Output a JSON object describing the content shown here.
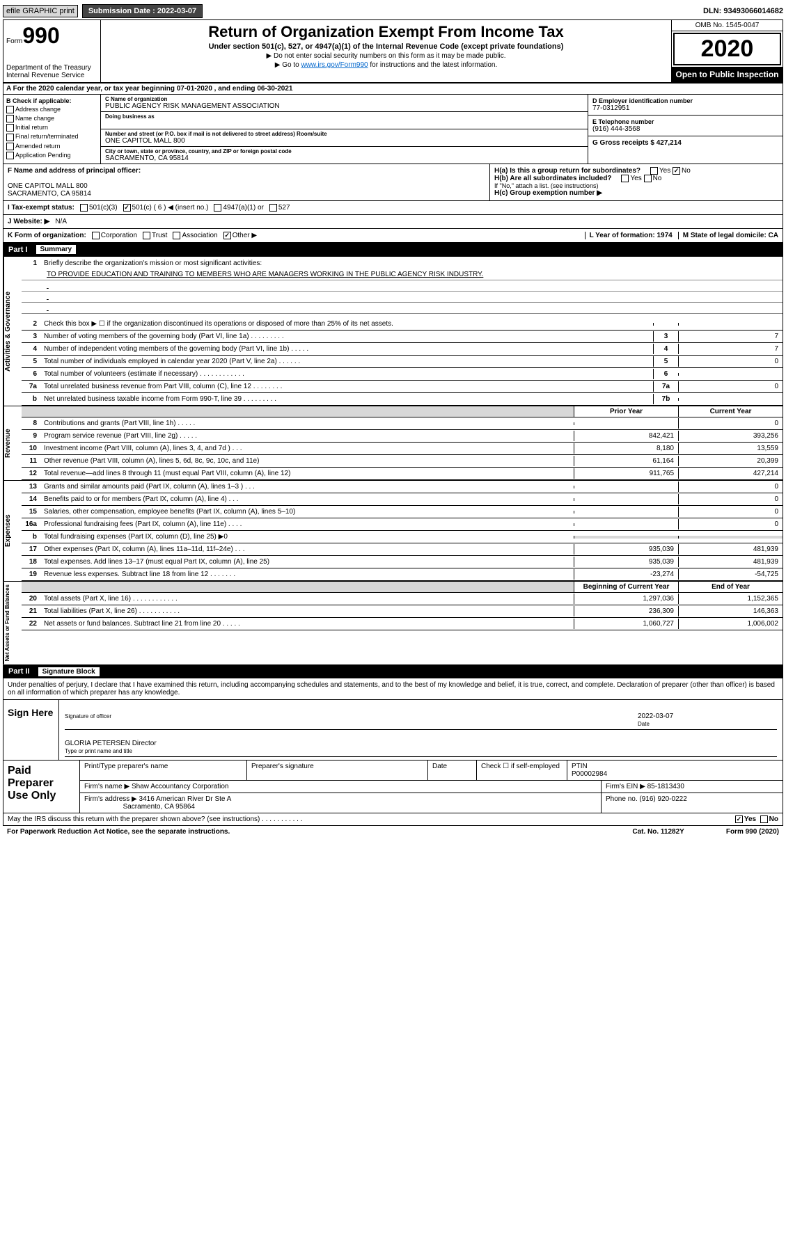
{
  "top": {
    "efile": "efile GRAPHIC print",
    "subm_label": "Submission Date : 2022-03-07",
    "dln": "DLN: 93493066014682"
  },
  "header": {
    "form": "Form",
    "formnum": "990",
    "title": "Return of Organization Exempt From Income Tax",
    "subtitle": "Under section 501(c), 527, or 4947(a)(1) of the Internal Revenue Code (except private foundations)",
    "note1": "▶ Do not enter social security numbers on this form as it may be made public.",
    "note2a": "▶ Go to ",
    "note2_link": "www.irs.gov/Form990",
    "note2b": " for instructions and the latest information.",
    "dept": "Department of the Treasury\nInternal Revenue Service",
    "omb": "OMB No. 1545-0047",
    "year": "2020",
    "open": "Open to Public Inspection"
  },
  "rowA": "A For the 2020 calendar year, or tax year beginning 07-01-2020     , and ending 06-30-2021",
  "colB": {
    "title": "B Check if applicable:",
    "opts": [
      "Address change",
      "Name change",
      "Initial return",
      "Final return/terminated",
      "Amended return",
      "Application Pending"
    ]
  },
  "colC": {
    "name_lbl": "C Name of organization",
    "name": "PUBLIC AGENCY RISK MANAGEMENT ASSOCIATION",
    "dba_lbl": "Doing business as",
    "addr_lbl": "Number and street (or P.O. box if mail is not delivered to street address)     Room/suite",
    "addr": "ONE CAPITOL MALL 800",
    "city_lbl": "City or town, state or province, country, and ZIP or foreign postal code",
    "city": "SACRAMENTO, CA  95814"
  },
  "colD": {
    "ein_lbl": "D Employer identification number",
    "ein": "77-0312951",
    "tel_lbl": "E Telephone number",
    "tel": "(916) 444-3568",
    "gross_lbl": "G Gross receipts $ 427,214"
  },
  "rowF": {
    "lbl": "F Name and address of principal officer:",
    "addr1": "ONE CAPITOL MALL 800",
    "addr2": "SACRAMENTO, CA  95814"
  },
  "rowH": {
    "ha": "H(a)  Is this a group return for subordinates?",
    "ha_yes": "Yes",
    "ha_no": "No",
    "hb": "H(b)  Are all subordinates included?",
    "hb_note": "If \"No,\" attach a list. (see instructions)",
    "hc": "H(c)  Group exemption number ▶"
  },
  "rowI": {
    "lbl": "I   Tax-exempt status:",
    "opts": [
      "501(c)(3)",
      "501(c) ( 6 ) ◀ (insert no.)",
      "4947(a)(1) or",
      "527"
    ]
  },
  "rowJ": {
    "lbl": "J   Website: ▶",
    "val": "N/A"
  },
  "rowK": {
    "lbl": "K Form of organization:",
    "opts": [
      "Corporation",
      "Trust",
      "Association",
      "Other ▶"
    ],
    "l": "L Year of formation: 1974",
    "m": "M State of legal domicile: CA"
  },
  "partI": {
    "num": "Part I",
    "title": "Summary"
  },
  "vlabels": [
    "Activities & Governance",
    "Revenue",
    "Expenses",
    "Net Assets or Fund Balances"
  ],
  "line1": {
    "num": "1",
    "desc": "Briefly describe the organization's mission or most significant activities:",
    "mission": "TO PROVIDE EDUCATION AND TRAINING TO MEMBERS WHO ARE MANAGERS WORKING IN THE PUBLIC AGENCY RISK INDUSTRY."
  },
  "gov_lines": [
    {
      "n": "2",
      "d": "Check this box ▶ ☐  if the organization discontinued its operations or disposed of more than 25% of its net assets.",
      "box": "",
      "v": ""
    },
    {
      "n": "3",
      "d": "Number of voting members of the governing body (Part VI, line 1a)  .    .    .    .    .    .    .    .    .",
      "box": "3",
      "v": "7"
    },
    {
      "n": "4",
      "d": "Number of independent voting members of the governing body (Part VI, line 1b)  .    .    .    .    .",
      "box": "4",
      "v": "7"
    },
    {
      "n": "5",
      "d": "Total number of individuals employed in calendar year 2020 (Part V, line 2a)  .    .    .    .    .    .",
      "box": "5",
      "v": "0"
    },
    {
      "n": "6",
      "d": "Total number of volunteers (estimate if necessary)  .    .    .    .    .    .    .    .    .    .    .    .",
      "box": "6",
      "v": ""
    },
    {
      "n": "7a",
      "d": "Total unrelated business revenue from Part VIII, column (C), line 12  .    .    .    .    .    .    .    .",
      "box": "7a",
      "v": "0"
    },
    {
      "n": "b",
      "d": "Net unrelated business taxable income from Form 990-T, line 39  .    .    .    .    .    .    .    .    .",
      "box": "7b",
      "v": ""
    }
  ],
  "col_heads": {
    "prior": "Prior Year",
    "current": "Current Year",
    "begin": "Beginning of Current Year",
    "end": "End of Year"
  },
  "rev_lines": [
    {
      "n": "8",
      "d": "Contributions and grants (Part VIII, line 1h)  .    .    .    .    .",
      "p": "",
      "c": "0"
    },
    {
      "n": "9",
      "d": "Program service revenue (Part VIII, line 2g)  .    .    .    .    .",
      "p": "842,421",
      "c": "393,256"
    },
    {
      "n": "10",
      "d": "Investment income (Part VIII, column (A), lines 3, 4, and 7d )  .    .    .",
      "p": "8,180",
      "c": "13,559"
    },
    {
      "n": "11",
      "d": "Other revenue (Part VIII, column (A), lines 5, 6d, 8c, 9c, 10c, and 11e)",
      "p": "61,164",
      "c": "20,399"
    },
    {
      "n": "12",
      "d": "Total revenue—add lines 8 through 11 (must equal Part VIII, column (A), line 12)",
      "p": "911,765",
      "c": "427,214"
    }
  ],
  "exp_lines": [
    {
      "n": "13",
      "d": "Grants and similar amounts paid (Part IX, column (A), lines 1–3 )  .    .    .",
      "p": "",
      "c": "0"
    },
    {
      "n": "14",
      "d": "Benefits paid to or for members (Part IX, column (A), line 4)  .    .    .",
      "p": "",
      "c": "0"
    },
    {
      "n": "15",
      "d": "Salaries, other compensation, employee benefits (Part IX, column (A), lines 5–10)",
      "p": "",
      "c": "0"
    },
    {
      "n": "16a",
      "d": "Professional fundraising fees (Part IX, column (A), line 11e)  .    .    .    .",
      "p": "",
      "c": "0"
    },
    {
      "n": "b",
      "d": "Total fundraising expenses (Part IX, column (D), line 25) ▶0",
      "p": "grey",
      "c": "grey"
    },
    {
      "n": "17",
      "d": "Other expenses (Part IX, column (A), lines 11a–11d, 11f–24e)  .    .    .",
      "p": "935,039",
      "c": "481,939"
    },
    {
      "n": "18",
      "d": "Total expenses. Add lines 13–17 (must equal Part IX, column (A), line 25)",
      "p": "935,039",
      "c": "481,939"
    },
    {
      "n": "19",
      "d": "Revenue less expenses. Subtract line 18 from line 12  .    .    .    .    .    .    .",
      "p": "-23,274",
      "c": "-54,725"
    }
  ],
  "net_lines": [
    {
      "n": "20",
      "d": "Total assets (Part X, line 16)  .    .    .    .    .    .    .    .    .    .    .    .",
      "p": "1,297,036",
      "c": "1,152,365"
    },
    {
      "n": "21",
      "d": "Total liabilities (Part X, line 26)  .    .    .    .    .    .    .    .    .    .    .",
      "p": "236,309",
      "c": "146,363"
    },
    {
      "n": "22",
      "d": "Net assets or fund balances. Subtract line 21 from line 20  .    .    .    .    .",
      "p": "1,060,727",
      "c": "1,006,002"
    }
  ],
  "partII": {
    "num": "Part II",
    "title": "Signature Block"
  },
  "perjury": "Under penalties of perjury, I declare that I have examined this return, including accompanying schedules and statements, and to the best of my knowledge and belief, it is true, correct, and complete. Declaration of preparer (other than officer) is based on all information of which preparer has any knowledge.",
  "sign": {
    "here": "Sign Here",
    "sig_lbl": "Signature of officer",
    "date_lbl": "Date",
    "date": "2022-03-07",
    "name": "GLORIA PETERSEN  Director",
    "name_lbl": "Type or print name and title"
  },
  "preparer": {
    "left": "Paid Preparer Use Only",
    "h1": "Print/Type preparer's name",
    "h2": "Preparer's signature",
    "h3": "Date",
    "check_lbl": "Check ☐ if self-employed",
    "ptin_lbl": "PTIN",
    "ptin": "P00002984",
    "firm_lbl": "Firm's name      ▶",
    "firm": "Shaw Accountancy Corporation",
    "ein_lbl": "Firm's EIN ▶",
    "ein": "85-1813430",
    "addr_lbl": "Firm's address ▶",
    "addr1": "3416 American River Dr Ste A",
    "addr2": "Sacramento, CA  95864",
    "phone_lbl": "Phone no.",
    "phone": "(916) 920-0222"
  },
  "discuss": {
    "q": "May the IRS discuss this return with the preparer shown above? (see instructions)  .    .    .    .    .    .    .    .    .    .    .",
    "yes": "Yes",
    "no": "No"
  },
  "footer": {
    "left": "For Paperwork Reduction Act Notice, see the separate instructions.",
    "mid": "Cat. No. 11282Y",
    "right": "Form 990 (2020)"
  }
}
